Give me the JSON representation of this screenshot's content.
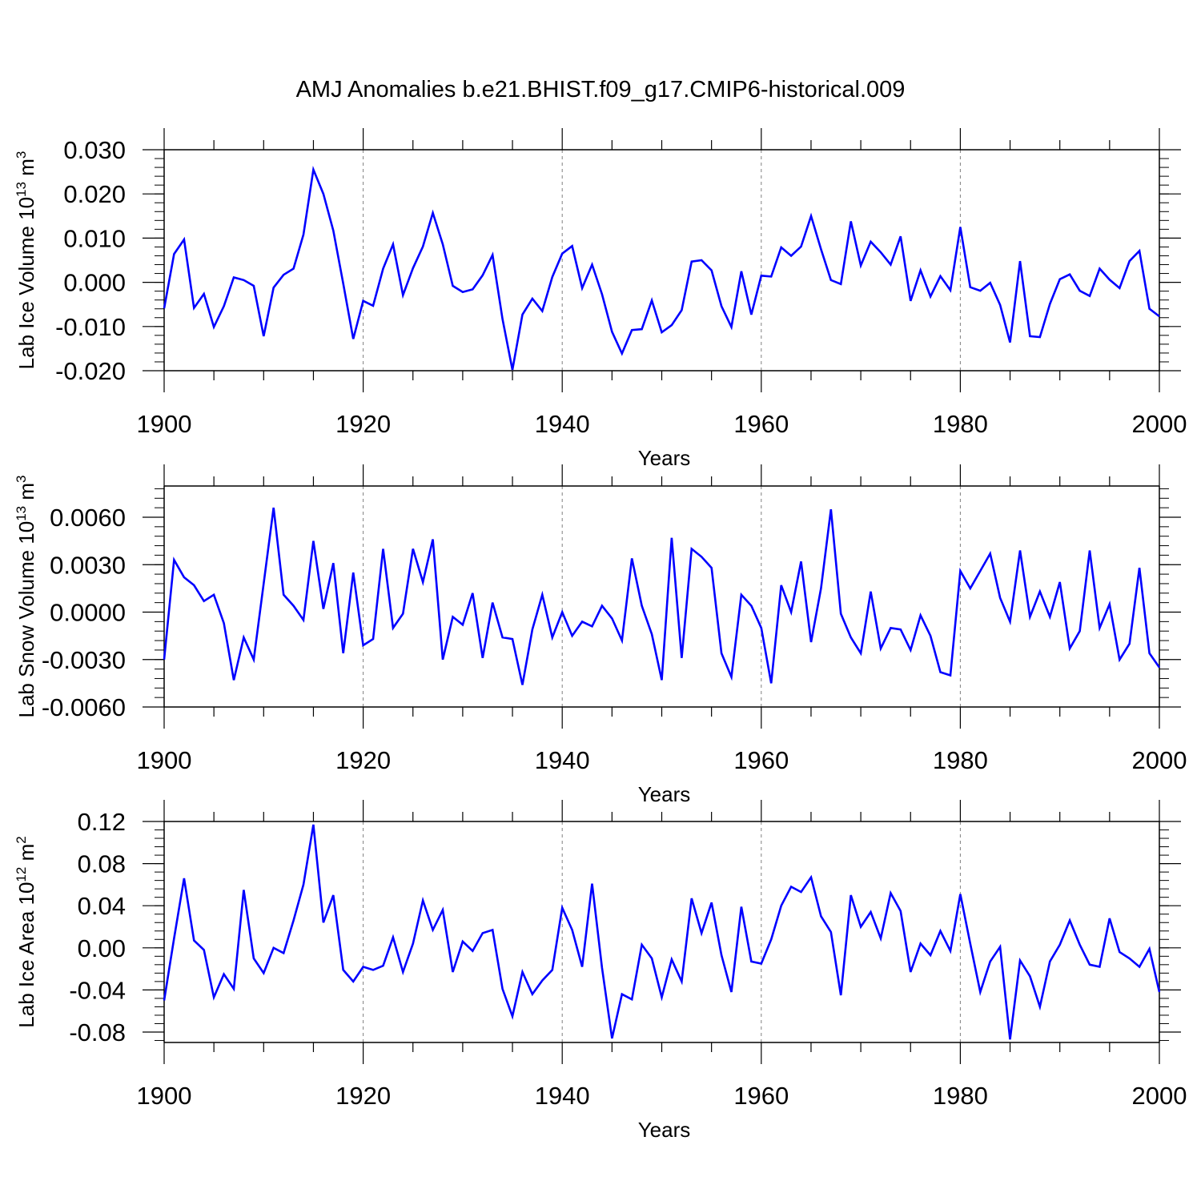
{
  "title": "AMJ Anomalies b.e21.BHIST.f09_g17.CMIP6-historical.009",
  "colors": {
    "line": "#0000ff",
    "axis": "#000000",
    "grid": "#808080"
  },
  "chart_data": [
    {
      "type": "line",
      "ylabel_main": "Lab Ice Volume 10",
      "ylabel_exp": "13",
      "ylabel_tail": " m",
      "ylabel_unit_exp": "3",
      "xlabel": "Years",
      "xlim": [
        1900,
        2000
      ],
      "ylim": [
        -0.02,
        0.03
      ],
      "yticks": [
        -0.02,
        -0.01,
        0.0,
        0.01,
        0.02,
        0.03
      ],
      "yticklabels": [
        "-0.020",
        "-0.010",
        "0.000",
        "0.010",
        "0.020",
        "0.030"
      ],
      "xticks": [
        1900,
        1920,
        1940,
        1960,
        1980,
        2000
      ],
      "xticklabels": [
        "1900",
        "1920",
        "1940",
        "1960",
        "1980",
        "2000"
      ],
      "grid_x": [
        1920,
        1940,
        1960,
        1980
      ],
      "series": [
        {
          "name": "Lab Ice Volume",
          "x_start": 1900,
          "values": [
            -0.0059,
            0.0064,
            0.0097,
            -0.0058,
            -0.0026,
            -0.0101,
            -0.0054,
            0.0011,
            0.0005,
            -0.0008,
            -0.0122,
            -0.0012,
            0.0017,
            0.0031,
            0.0108,
            0.0255,
            0.02,
            0.0117,
            -0.0003,
            -0.0128,
            -0.0042,
            -0.0053,
            0.0031,
            0.0086,
            -0.0029,
            0.0032,
            0.0081,
            0.0157,
            0.0086,
            -0.0008,
            -0.0022,
            -0.0016,
            0.0016,
            0.0062,
            -0.0083,
            -0.0198,
            -0.0073,
            -0.0037,
            -0.0065,
            0.0012,
            0.0065,
            0.0082,
            -0.0013,
            0.004,
            -0.0027,
            -0.0112,
            -0.0161,
            -0.0108,
            -0.0106,
            -0.0041,
            -0.0113,
            -0.0097,
            -0.0063,
            0.0047,
            0.005,
            0.0027,
            -0.0054,
            -0.0101,
            0.0025,
            -0.0073,
            0.0015,
            0.0013,
            0.0079,
            0.006,
            0.0081,
            0.015,
            0.0075,
            0.0005,
            -0.0004,
            0.0138,
            0.0038,
            0.0092,
            0.0068,
            0.004,
            0.0104,
            -0.0042,
            0.0027,
            -0.0032,
            0.0014,
            -0.0018,
            0.0125,
            -0.0011,
            -0.0019,
            -0.0001,
            -0.0051,
            -0.0136,
            0.0048,
            -0.0122,
            -0.0124,
            -0.0049,
            0.0007,
            0.0018,
            -0.0019,
            -0.0031,
            0.0031,
            0.0006,
            -0.0013,
            0.0048,
            0.0071,
            -0.006,
            -0.0077
          ]
        }
      ]
    },
    {
      "type": "line",
      "ylabel_main": "Lab Snow Volume 10",
      "ylabel_exp": "13",
      "ylabel_tail": " m",
      "ylabel_unit_exp": "3",
      "xlabel": "Years",
      "xlim": [
        1900,
        2000
      ],
      "ylim": [
        -0.006,
        0.008
      ],
      "yticks": [
        -0.006,
        -0.003,
        0.0,
        0.003,
        0.006
      ],
      "yticklabels": [
        "-0.0060",
        "-0.0030",
        "0.0000",
        "0.0030",
        "0.0060"
      ],
      "xticks": [
        1900,
        1920,
        1940,
        1960,
        1980,
        2000
      ],
      "xticklabels": [
        "1900",
        "1920",
        "1940",
        "1960",
        "1980",
        "2000"
      ],
      "grid_x": [
        1920,
        1940,
        1960,
        1980
      ],
      "series": [
        {
          "name": "Lab Snow Volume",
          "x_start": 1900,
          "values": [
            -0.003,
            0.0033,
            0.0022,
            0.0017,
            0.0007,
            0.0011,
            -0.0007,
            -0.0043,
            -0.0016,
            -0.003,
            0.0018,
            0.0066,
            0.0011,
            0.0004,
            -0.0005,
            0.0045,
            0.0002,
            0.0031,
            -0.0026,
            0.0025,
            -0.0021,
            -0.0017,
            0.004,
            -0.001,
            -0.0001,
            0.004,
            0.0019,
            0.0046,
            -0.003,
            -0.0003,
            -0.0008,
            0.0012,
            -0.0029,
            0.0006,
            -0.0016,
            -0.0017,
            -0.0046,
            -0.0011,
            0.0011,
            -0.0016,
            0.0,
            -0.0015,
            -0.0006,
            -0.0009,
            0.0004,
            -0.0004,
            -0.0018,
            0.0034,
            0.0004,
            -0.0014,
            -0.0043,
            0.0047,
            -0.0029,
            0.004,
            0.0035,
            0.0028,
            -0.0026,
            -0.0041,
            0.0011,
            0.0004,
            -0.001,
            -0.0045,
            0.0017,
            0.0,
            0.0032,
            -0.0019,
            0.0015,
            0.0065,
            -0.0001,
            -0.0016,
            -0.0026,
            0.0013,
            -0.0023,
            -0.001,
            -0.0011,
            -0.0024,
            -0.0002,
            -0.0015,
            -0.0038,
            -0.004,
            0.0026,
            0.0015,
            0.0026,
            0.0037,
            0.0009,
            -0.0006,
            0.0039,
            -0.0003,
            0.0013,
            -0.0003,
            0.0019,
            -0.0023,
            -0.0012,
            0.0039,
            -0.001,
            0.0005,
            -0.003,
            -0.002,
            0.0028,
            -0.0026,
            -0.0035
          ]
        }
      ]
    },
    {
      "type": "line",
      "ylabel_main": "Lab Ice Area 10",
      "ylabel_exp": "12",
      "ylabel_tail": " m",
      "ylabel_unit_exp": "2",
      "xlabel": "Years",
      "xlim": [
        1900,
        2000
      ],
      "ylim": [
        -0.09,
        0.12
      ],
      "yticks": [
        -0.08,
        -0.04,
        0.0,
        0.04,
        0.08,
        0.12
      ],
      "yticklabels": [
        "-0.08",
        "-0.04",
        "0.00",
        "0.04",
        "0.08",
        "0.12"
      ],
      "xticks": [
        1900,
        1920,
        1940,
        1960,
        1980,
        2000
      ],
      "xticklabels": [
        "1900",
        "1920",
        "1940",
        "1960",
        "1980",
        "2000"
      ],
      "grid_x": [
        1920,
        1940,
        1960,
        1980
      ],
      "series": [
        {
          "name": "Lab Ice Area",
          "x_start": 1900,
          "values": [
            -0.05,
            0.009,
            0.066,
            0.007,
            -0.002,
            -0.047,
            -0.025,
            -0.039,
            0.055,
            -0.01,
            -0.024,
            0.0,
            -0.005,
            0.026,
            0.06,
            0.117,
            0.024,
            0.05,
            -0.021,
            -0.032,
            -0.018,
            -0.021,
            -0.017,
            0.01,
            -0.023,
            0.004,
            0.045,
            0.017,
            0.036,
            -0.023,
            0.006,
            -0.003,
            0.014,
            0.017,
            -0.039,
            -0.065,
            -0.023,
            -0.044,
            -0.031,
            -0.021,
            0.038,
            0.017,
            -0.018,
            0.061,
            -0.019,
            -0.086,
            -0.044,
            -0.049,
            0.003,
            -0.01,
            -0.047,
            -0.011,
            -0.032,
            0.047,
            0.014,
            0.043,
            -0.007,
            -0.042,
            0.039,
            -0.013,
            -0.015,
            0.008,
            0.04,
            0.058,
            0.053,
            0.067,
            0.03,
            0.015,
            -0.045,
            0.05,
            0.02,
            0.034,
            0.009,
            0.052,
            0.035,
            -0.023,
            0.004,
            -0.007,
            0.016,
            -0.003,
            0.051,
            0.004,
            -0.042,
            -0.013,
            0.001,
            -0.087,
            -0.012,
            -0.027,
            -0.056,
            -0.013,
            0.003,
            0.026,
            0.003,
            -0.016,
            -0.018,
            0.028,
            -0.004,
            -0.01,
            -0.018,
            -0.001,
            -0.042
          ]
        }
      ]
    }
  ]
}
